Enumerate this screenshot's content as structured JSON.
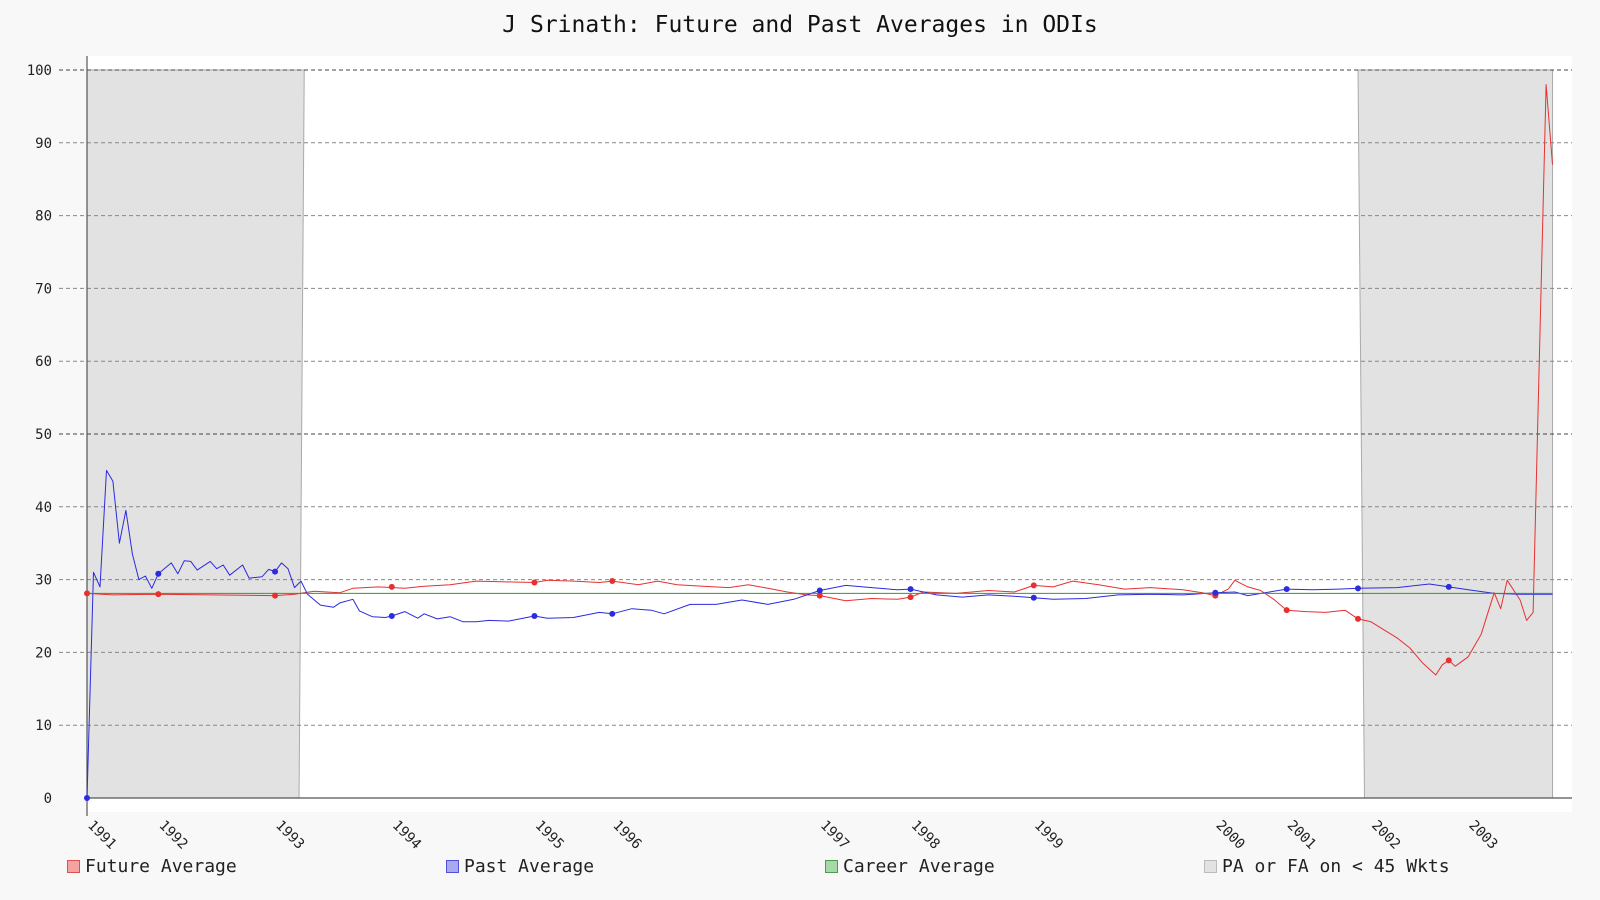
{
  "chart_data": {
    "type": "line",
    "title": "J Srinath: Future and Past Averages in ODIs",
    "xlabel": "",
    "ylabel": "",
    "ylim": [
      0,
      100
    ],
    "yticks": [
      0,
      10,
      20,
      30,
      40,
      50,
      60,
      70,
      80,
      90,
      100
    ],
    "xlim": [
      1,
      230
    ],
    "year_ticks": [
      {
        "label": "1991",
        "x": 1
      },
      {
        "label": "1992",
        "x": 12
      },
      {
        "label": "1993",
        "x": 30
      },
      {
        "label": "1994",
        "x": 48
      },
      {
        "label": "1995",
        "x": 70
      },
      {
        "label": "1996",
        "x": 82
      },
      {
        "label": "1997",
        "x": 114
      },
      {
        "label": "1998",
        "x": 128
      },
      {
        "label": "1999",
        "x": 147
      },
      {
        "label": "2000",
        "x": 175
      },
      {
        "label": "2001",
        "x": 186
      },
      {
        "label": "2002",
        "x": 199
      },
      {
        "label": "2003",
        "x": 214
      }
    ],
    "grid": true,
    "legend_position": "bottom",
    "shaded_regions": [
      {
        "x_top": [
          1,
          34.5
        ],
        "x_bottom": [
          1,
          33.7
        ]
      },
      {
        "x_top": [
          197,
          227
        ],
        "x_bottom": [
          198,
          227
        ]
      }
    ],
    "career_average": 28.1,
    "series": [
      {
        "name": "Future Average",
        "color": "#e83030",
        "values": [
          [
            1,
            28.1
          ],
          [
            5,
            27.9
          ],
          [
            12,
            28.0
          ],
          [
            20,
            27.9
          ],
          [
            30,
            27.8
          ],
          [
            33,
            28.0
          ],
          [
            36,
            28.4
          ],
          [
            40,
            28.2
          ],
          [
            42,
            28.8
          ],
          [
            46,
            29.0
          ],
          [
            50,
            28.8
          ],
          [
            53,
            29.1
          ],
          [
            57,
            29.3
          ],
          [
            61,
            29.8
          ],
          [
            65,
            29.7
          ],
          [
            70,
            29.6
          ],
          [
            72,
            29.9
          ],
          [
            76,
            29.8
          ],
          [
            80,
            29.6
          ],
          [
            82,
            29.8
          ],
          [
            86,
            29.3
          ],
          [
            89,
            29.8
          ],
          [
            92,
            29.3
          ],
          [
            96,
            29.1
          ],
          [
            100,
            28.9
          ],
          [
            103,
            29.3
          ],
          [
            106,
            28.8
          ],
          [
            109,
            28.3
          ],
          [
            112,
            27.9
          ],
          [
            114,
            27.8
          ],
          [
            118,
            27.1
          ],
          [
            122,
            27.4
          ],
          [
            126,
            27.3
          ],
          [
            128,
            27.6
          ],
          [
            130,
            28.3
          ],
          [
            135,
            28.1
          ],
          [
            140,
            28.5
          ],
          [
            144,
            28.3
          ],
          [
            147,
            29.2
          ],
          [
            150,
            29.0
          ],
          [
            153,
            29.8
          ],
          [
            157,
            29.3
          ],
          [
            161,
            28.7
          ],
          [
            165,
            28.9
          ],
          [
            170,
            28.6
          ],
          [
            173,
            28.2
          ],
          [
            175,
            27.8
          ],
          [
            177,
            28.7
          ],
          [
            178,
            29.9
          ],
          [
            180,
            29.0
          ],
          [
            182,
            28.5
          ],
          [
            184,
            27.3
          ],
          [
            186,
            25.8
          ],
          [
            189,
            25.6
          ],
          [
            192,
            25.5
          ],
          [
            195,
            25.8
          ],
          [
            197,
            24.6
          ],
          [
            199,
            24.2
          ],
          [
            201,
            23.1
          ],
          [
            203,
            22.0
          ],
          [
            205,
            20.6
          ],
          [
            207,
            18.5
          ],
          [
            209,
            16.9
          ],
          [
            210,
            18.3
          ],
          [
            211,
            18.9
          ],
          [
            212,
            18.1
          ],
          [
            214,
            19.4
          ],
          [
            216,
            22.5
          ],
          [
            218,
            28.2
          ],
          [
            219,
            26.0
          ],
          [
            220,
            29.9
          ],
          [
            222,
            27.2
          ],
          [
            223,
            24.4
          ],
          [
            224,
            25.5
          ],
          [
            226,
            98.0
          ],
          [
            227,
            87.0
          ]
        ],
        "markers": [
          [
            1,
            28.1
          ],
          [
            12,
            28.0
          ],
          [
            30,
            27.8
          ],
          [
            48,
            29.0
          ],
          [
            70,
            29.6
          ],
          [
            82,
            29.8
          ],
          [
            114,
            27.8
          ],
          [
            128,
            27.6
          ],
          [
            147,
            29.2
          ],
          [
            175,
            27.8
          ],
          [
            186,
            25.8
          ],
          [
            197,
            24.6
          ],
          [
            211,
            18.9
          ]
        ]
      },
      {
        "name": "Past Average",
        "color": "#2b2be0",
        "values": [
          [
            1,
            0.0
          ],
          [
            2,
            31.0
          ],
          [
            3,
            29.0
          ],
          [
            4,
            45.0
          ],
          [
            5,
            43.5
          ],
          [
            6,
            35.0
          ],
          [
            7,
            39.5
          ],
          [
            8,
            33.5
          ],
          [
            9,
            30.0
          ],
          [
            10,
            30.5
          ],
          [
            11,
            28.8
          ],
          [
            12,
            30.8
          ],
          [
            14,
            32.3
          ],
          [
            15,
            30.8
          ],
          [
            16,
            32.6
          ],
          [
            17,
            32.5
          ],
          [
            18,
            31.3
          ],
          [
            20,
            32.5
          ],
          [
            21,
            31.5
          ],
          [
            22,
            32.0
          ],
          [
            23,
            30.6
          ],
          [
            25,
            32.0
          ],
          [
            26,
            30.2
          ],
          [
            28,
            30.4
          ],
          [
            29,
            31.4
          ],
          [
            30,
            31.1
          ],
          [
            31,
            32.3
          ],
          [
            32,
            31.5
          ],
          [
            33,
            28.9
          ],
          [
            34,
            29.8
          ],
          [
            35,
            28.0
          ],
          [
            37,
            26.5
          ],
          [
            39,
            26.2
          ],
          [
            40,
            26.8
          ],
          [
            42,
            27.3
          ],
          [
            43,
            25.7
          ],
          [
            45,
            24.9
          ],
          [
            47,
            24.8
          ],
          [
            48,
            25.0
          ],
          [
            50,
            25.6
          ],
          [
            52,
            24.7
          ],
          [
            53,
            25.3
          ],
          [
            55,
            24.6
          ],
          [
            57,
            24.9
          ],
          [
            59,
            24.2
          ],
          [
            61,
            24.2
          ],
          [
            63,
            24.4
          ],
          [
            66,
            24.3
          ],
          [
            70,
            25.0
          ],
          [
            72,
            24.7
          ],
          [
            76,
            24.8
          ],
          [
            80,
            25.5
          ],
          [
            82,
            25.3
          ],
          [
            85,
            26.0
          ],
          [
            88,
            25.8
          ],
          [
            90,
            25.3
          ],
          [
            94,
            26.6
          ],
          [
            98,
            26.6
          ],
          [
            102,
            27.2
          ],
          [
            106,
            26.6
          ],
          [
            110,
            27.3
          ],
          [
            112,
            27.9
          ],
          [
            114,
            28.5
          ],
          [
            118,
            29.2
          ],
          [
            122,
            28.9
          ],
          [
            126,
            28.6
          ],
          [
            128,
            28.7
          ],
          [
            132,
            27.9
          ],
          [
            136,
            27.6
          ],
          [
            140,
            27.9
          ],
          [
            144,
            27.7
          ],
          [
            147,
            27.5
          ],
          [
            150,
            27.3
          ],
          [
            155,
            27.4
          ],
          [
            160,
            27.9
          ],
          [
            165,
            28.0
          ],
          [
            170,
            27.9
          ],
          [
            175,
            28.2
          ],
          [
            178,
            28.3
          ],
          [
            180,
            27.8
          ],
          [
            186,
            28.7
          ],
          [
            190,
            28.6
          ],
          [
            194,
            28.7
          ],
          [
            197,
            28.8
          ],
          [
            203,
            28.9
          ],
          [
            208,
            29.4
          ],
          [
            211,
            29.0
          ],
          [
            214,
            28.6
          ],
          [
            218,
            28.1
          ],
          [
            222,
            28.0
          ],
          [
            226,
            28.0
          ],
          [
            227,
            28.0
          ]
        ],
        "markers": [
          [
            1,
            0.0
          ],
          [
            12,
            30.8
          ],
          [
            30,
            31.1
          ],
          [
            48,
            25.0
          ],
          [
            70,
            25.0
          ],
          [
            82,
            25.3
          ],
          [
            114,
            28.5
          ],
          [
            128,
            28.7
          ],
          [
            147,
            27.5
          ],
          [
            175,
            28.2
          ],
          [
            186,
            28.7
          ],
          [
            197,
            28.8
          ],
          [
            211,
            29.0
          ]
        ]
      },
      {
        "name": "Career Average",
        "color": "#2f9a2f",
        "values": [
          [
            1,
            28.1
          ],
          [
            227,
            28.1
          ]
        ]
      },
      {
        "name": "PA or FA on < 45 Wkts",
        "color": "#cccccc"
      }
    ]
  },
  "colors": {
    "future": "#e83030",
    "past": "#2b2be0",
    "career": "#2f9a2f",
    "shade_fill": "#e2e2e2",
    "shade_stroke": "#aaaaaa"
  },
  "legend": [
    {
      "label": "Future Average",
      "swatch_fill": "#f4a3a3",
      "swatch_border": "#e05050"
    },
    {
      "label": "Past Average",
      "swatch_fill": "#a9a9f2",
      "swatch_border": "#5050d8"
    },
    {
      "label": "Career Average",
      "swatch_fill": "#a8d8a8",
      "swatch_border": "#4a9e4a"
    },
    {
      "label": "PA or FA on < 45 Wkts",
      "swatch_fill": "#e2e2e2",
      "swatch_border": "#bbbbbb"
    }
  ]
}
